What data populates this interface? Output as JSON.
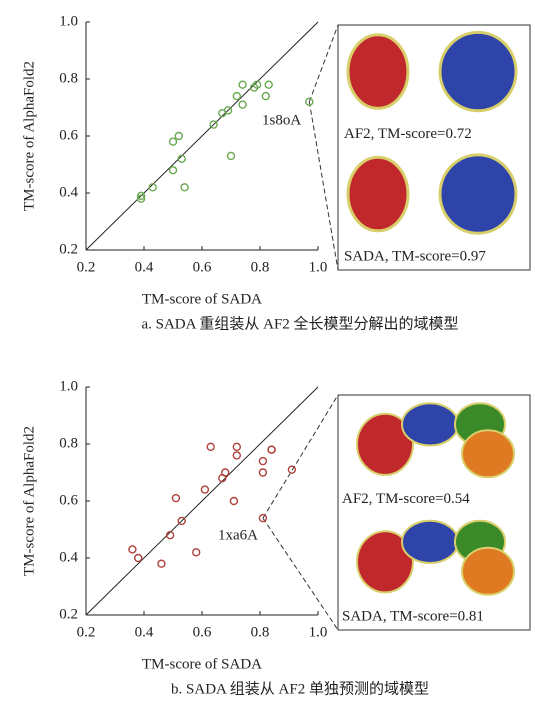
{
  "chart_data": [
    {
      "type": "scatter",
      "xlabel": "TM-score of SADA",
      "ylabel": "TM-score of AlphaFold2",
      "color": "#6aa84f",
      "x": [
        0.39,
        0.39,
        0.43,
        0.5,
        0.53,
        0.5,
        0.52,
        0.54,
        0.7,
        0.64,
        0.67,
        0.69,
        0.72,
        0.74,
        0.74,
        0.78,
        0.79,
        0.82,
        0.83,
        0.97
      ],
      "values": [
        0.39,
        0.38,
        0.42,
        0.48,
        0.52,
        0.58,
        0.6,
        0.42,
        0.53,
        0.64,
        0.68,
        0.69,
        0.74,
        0.78,
        0.71,
        0.77,
        0.78,
        0.74,
        0.78,
        0.72
      ],
      "xlim": [
        0.2,
        1.0
      ],
      "ylim": [
        0.2,
        1.0
      ],
      "xticks": [
        0.2,
        0.4,
        0.6,
        0.8,
        {
          "value": 1,
          "label": "1.0"
        }
      ],
      "yticks": [
        0.2,
        0.4,
        0.6,
        0.8,
        {
          "value": 1,
          "label": "1.0"
        }
      ],
      "annotation": "1s8oA",
      "panels": [
        "AF2, TM-score=0.72",
        "SADA, TM-score=0.97"
      ],
      "caption": "a. SADA 重组装从 AF2 全长模型分解出的域模型"
    },
    {
      "type": "scatter",
      "xlabel": "TM-score of SADA",
      "ylabel": "TM-score of AlphaFold2",
      "color": "#b0403c",
      "x": [
        0.36,
        0.38,
        0.46,
        0.49,
        0.51,
        0.53,
        0.58,
        0.61,
        0.63,
        0.67,
        0.68,
        0.72,
        0.72,
        0.71,
        0.81,
        0.81,
        0.84,
        0.84,
        0.81,
        0.91
      ],
      "values": [
        0.43,
        0.4,
        0.38,
        0.48,
        0.61,
        0.53,
        0.42,
        0.64,
        0.79,
        0.68,
        0.7,
        0.79,
        0.76,
        0.6,
        0.74,
        0.7,
        0.78,
        0.78,
        0.54,
        0.71
      ],
      "xlim": [
        0.2,
        1.0
      ],
      "ylim": [
        0.2,
        1.0
      ],
      "xticks": [
        0.2,
        0.4,
        0.6,
        0.8,
        {
          "value": 1,
          "label": "1.0"
        }
      ],
      "yticks": [
        0.2,
        0.4,
        0.6,
        0.8,
        {
          "value": 1,
          "label": "1.0"
        }
      ],
      "annotation": "1xa6A",
      "panels": [
        "AF2, TM-score=0.54",
        "SADA, TM-score=0.81"
      ],
      "caption": "b. SADA 组装从 AF2 单独预测的域模型"
    }
  ]
}
